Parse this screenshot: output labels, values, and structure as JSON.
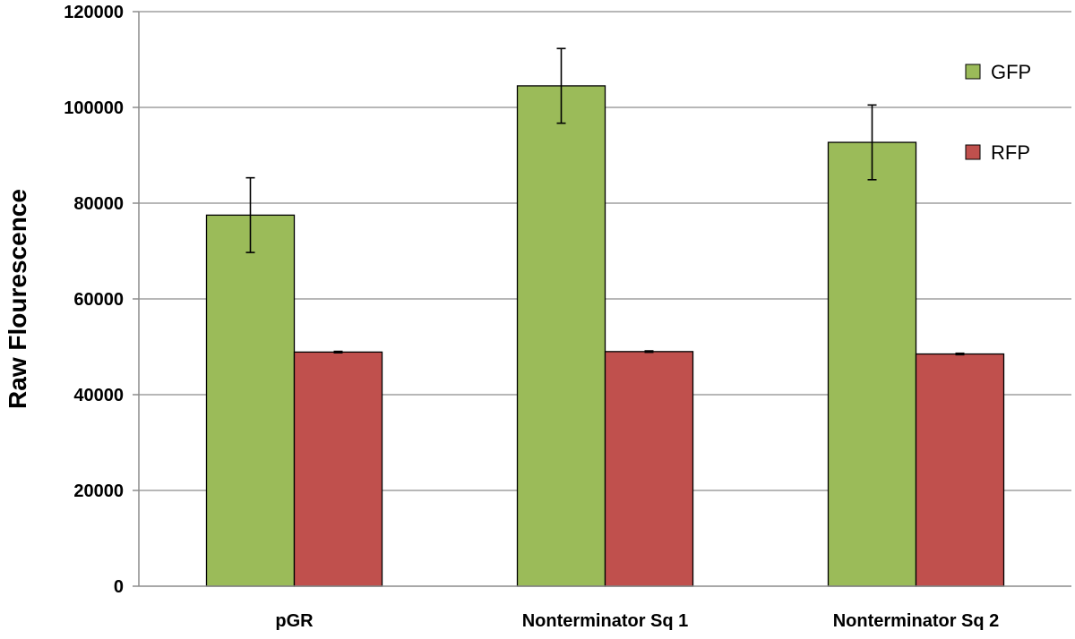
{
  "chart_data": {
    "type": "bar",
    "ylabel": "Raw Flourescence",
    "xlabel": "",
    "ylim": [
      0,
      120000
    ],
    "yticks": [
      0,
      20000,
      40000,
      60000,
      80000,
      100000,
      120000
    ],
    "ytick_labels": [
      "0",
      "20000",
      "40000",
      "60000",
      "80000",
      "100000",
      "120000"
    ],
    "grid": true,
    "legend_position": "top-right",
    "categories": [
      "pGR",
      "Nonterminator Sq 1",
      "Nonterminator Sq 2"
    ],
    "series": [
      {
        "name": "GFP",
        "color": "#9bbb59",
        "values": [
          77500,
          104500,
          92700
        ],
        "error": [
          7800,
          7800,
          7800
        ]
      },
      {
        "name": "RFP",
        "color": "#c0504d",
        "values": [
          48900,
          49000,
          48500
        ],
        "error": [
          150,
          150,
          150
        ]
      }
    ]
  }
}
